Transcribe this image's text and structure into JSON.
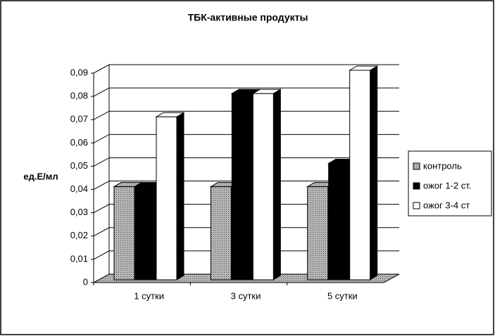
{
  "chart_data": {
    "type": "bar3d",
    "title": "ТБК-активные продукты",
    "y_label": "ед.Е/мл",
    "categories": [
      "1 сутки",
      "3 сутки",
      "5 сутки"
    ],
    "series": [
      {
        "name": "контроль",
        "color": "#9a9a9a",
        "values": [
          0.04,
          0.04,
          0.04
        ]
      },
      {
        "name": "ожог 1-2 ст.",
        "color": "#000000",
        "values": [
          0.04,
          0.08,
          0.05
        ]
      },
      {
        "name": "ожог 3-4 ст",
        "color": "#ffffff",
        "values": [
          0.07,
          0.08,
          0.09
        ]
      }
    ],
    "ylim": [
      0,
      0.09
    ],
    "yticks": [
      0,
      {
        "value": 0.01,
        "label": "0,01"
      },
      {
        "value": 0.02,
        "label": "0,02"
      },
      {
        "value": 0.03,
        "label": "0,03"
      },
      {
        "value": 0.04,
        "label": "0,04"
      },
      {
        "value": 0.05,
        "label": "0,05"
      },
      {
        "value": 0.06,
        "label": "0,06"
      },
      {
        "value": 0.07,
        "label": "0,07"
      },
      {
        "value": 0.08,
        "label": "0,08"
      },
      {
        "value": 0.09,
        "label": "0,09"
      }
    ],
    "grid": true,
    "legend": "right"
  }
}
